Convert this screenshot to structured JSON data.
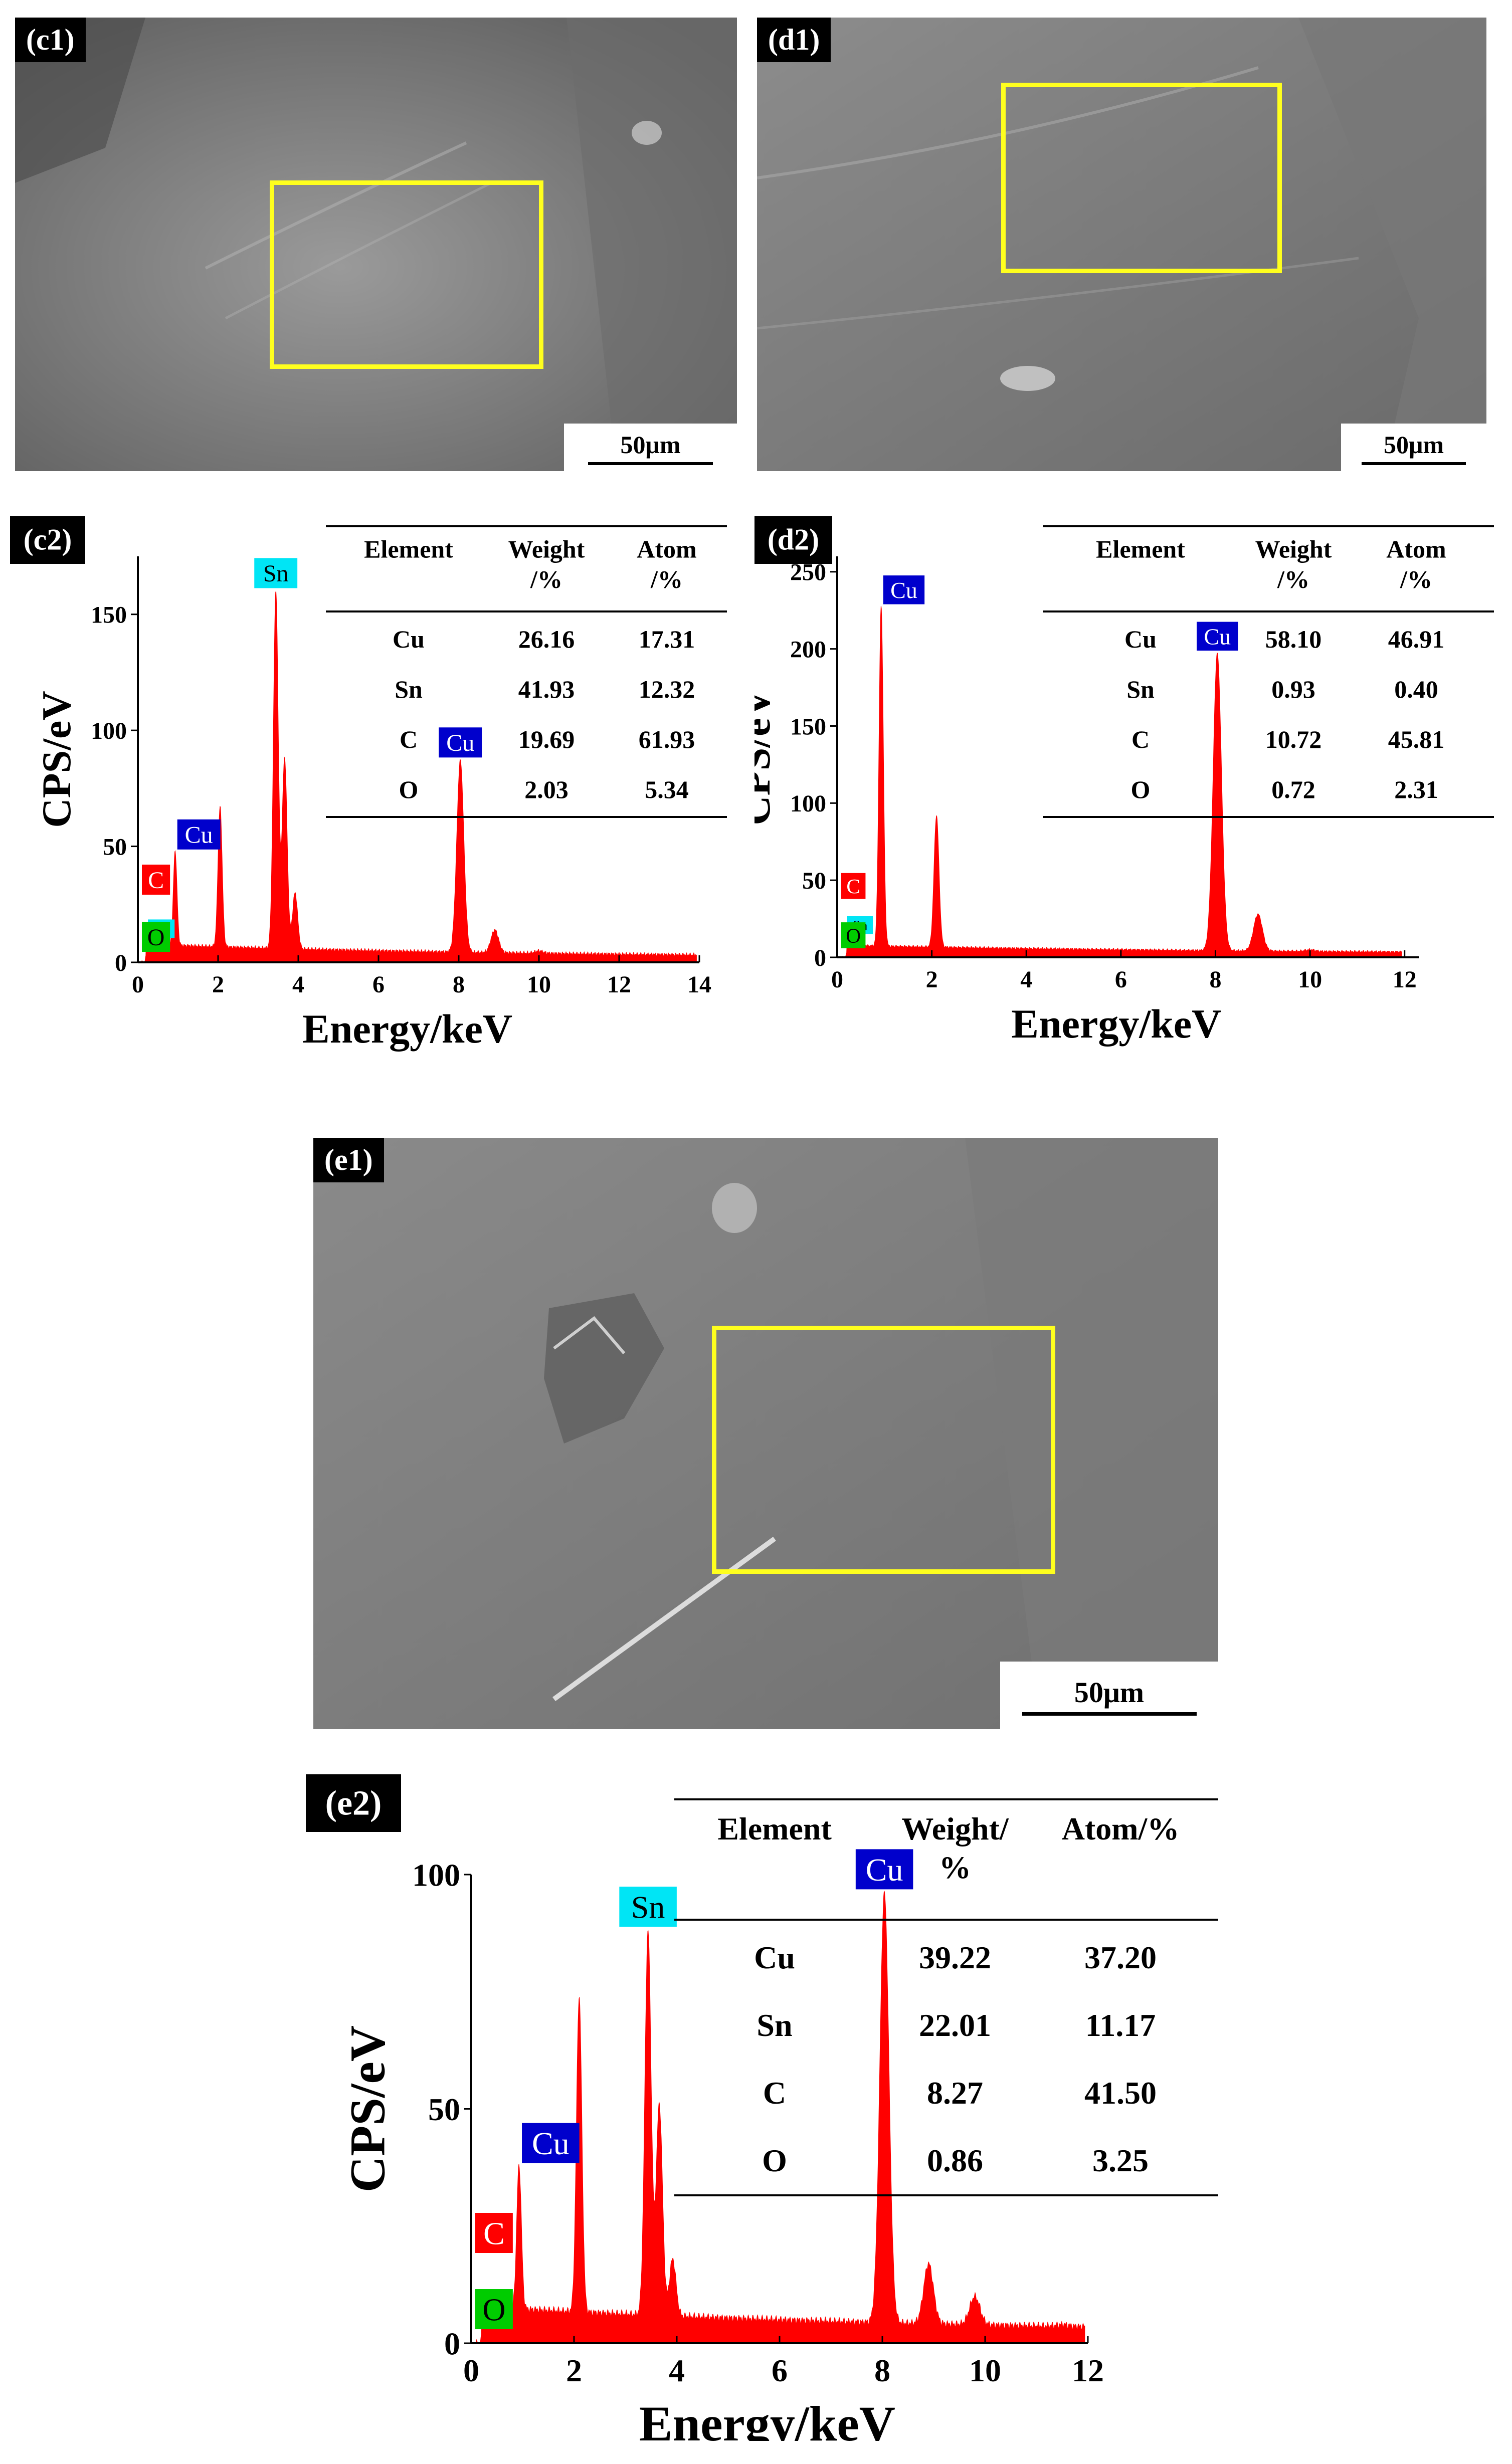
{
  "colors": {
    "spectrum": "#ff0000",
    "roi": "#ffff1e",
    "Cu": "#0000cc",
    "Sn": "#00e5f5",
    "C": "#ff0000",
    "O": "#00cc00"
  },
  "sem_images": [
    {
      "label": "(c1)",
      "scale": "50μm"
    },
    {
      "label": "(d1)",
      "scale": "50μm"
    },
    {
      "label": "(e1)",
      "scale": "50μm"
    }
  ],
  "chart_data": [
    {
      "type": "area",
      "panel_label": "(c2)",
      "title": "",
      "xlabel": "Energy/keV",
      "ylabel": "CPS/eV",
      "xlim": [
        0,
        14
      ],
      "ylim": [
        0,
        175
      ],
      "xticks": [
        0,
        2,
        4,
        6,
        8,
        10,
        12,
        14
      ],
      "yticks": [
        0,
        50,
        100,
        150
      ],
      "peaks": [
        [
          0.28,
          15
        ],
        [
          0.52,
          10
        ],
        [
          0.93,
          48
        ],
        [
          2.05,
          67
        ],
        [
          3.44,
          160
        ],
        [
          3.66,
          88
        ],
        [
          3.92,
          30
        ],
        [
          8.04,
          87
        ],
        [
          8.9,
          14
        ],
        [
          10.0,
          5
        ],
        [
          11.5,
          3
        ]
      ],
      "peak_labels": [
        {
          "element": "Sn",
          "x": 3.44,
          "y": 160
        },
        {
          "element": "Cu",
          "x": 8.04,
          "y": 87
        },
        {
          "element": "Cu",
          "x": 0.93,
          "y": 48
        },
        {
          "element": "C",
          "x": 0.28,
          "y": 15
        },
        {
          "element": "Sn",
          "x": 0.55,
          "y": 12
        },
        {
          "element": "O",
          "x": 0.52,
          "y": 10
        }
      ],
      "table": {
        "headers": [
          "Element",
          "Weight\n/%",
          "Atom\n/%"
        ],
        "rows": [
          [
            "Cu",
            "26.16",
            "17.31"
          ],
          [
            "Sn",
            "41.93",
            "12.32"
          ],
          [
            "C",
            "19.69",
            "61.93"
          ],
          [
            "O",
            "2.03",
            "5.34"
          ]
        ]
      }
    },
    {
      "type": "area",
      "panel_label": "(d2)",
      "title": "",
      "xlabel": "Energy/keV",
      "ylabel": "CPS/eV",
      "xlim": [
        0,
        12.3
      ],
      "ylim": [
        0,
        260
      ],
      "xticks": [
        0,
        2,
        4,
        6,
        8,
        10,
        12
      ],
      "yticks": [
        0,
        50,
        100,
        150,
        200,
        250
      ],
      "peaks": [
        [
          0.28,
          15
        ],
        [
          0.52,
          8
        ],
        [
          0.93,
          228
        ],
        [
          2.1,
          92
        ],
        [
          8.04,
          197
        ],
        [
          8.9,
          28
        ],
        [
          10.0,
          5
        ],
        [
          11.5,
          3
        ]
      ],
      "peak_labels": [
        {
          "element": "Cu",
          "x": 0.93,
          "y": 228
        },
        {
          "element": "Cu",
          "x": 8.04,
          "y": 197
        },
        {
          "element": "C",
          "x": 0.28,
          "y": 15
        },
        {
          "element": "Sn",
          "x": 0.55,
          "y": 10
        },
        {
          "element": "O",
          "x": 0.52,
          "y": 8
        }
      ],
      "table": {
        "headers": [
          "Element",
          "Weight\n/%",
          "Atom\n/%"
        ],
        "rows": [
          [
            "Cu",
            "58.10",
            "46.91"
          ],
          [
            "Sn",
            "0.93",
            "0.40"
          ],
          [
            "C",
            "10.72",
            "45.81"
          ],
          [
            "O",
            "0.72",
            "2.31"
          ]
        ]
      }
    },
    {
      "type": "area",
      "panel_label": "(e2)",
      "title": "",
      "xlabel": "Energy/keV",
      "ylabel": "CPS/eV",
      "xlim": [
        0,
        12
      ],
      "ylim": [
        0,
        100
      ],
      "xticks": [
        0,
        2,
        4,
        6,
        8,
        10,
        12
      ],
      "yticks": [
        0,
        50,
        100
      ],
      "peaks": [
        [
          0.28,
          8
        ],
        [
          0.52,
          6
        ],
        [
          0.93,
          38
        ],
        [
          2.1,
          74
        ],
        [
          3.44,
          88
        ],
        [
          3.66,
          51
        ],
        [
          3.92,
          18
        ],
        [
          8.04,
          96
        ],
        [
          8.9,
          17
        ],
        [
          9.8,
          10
        ],
        [
          11.5,
          4
        ]
      ],
      "peak_labels": [
        {
          "element": "Sn",
          "x": 3.44,
          "y": 88
        },
        {
          "element": "Cu",
          "x": 8.04,
          "y": 96
        },
        {
          "element": "Cu",
          "x": 0.93,
          "y": 38
        },
        {
          "element": "C",
          "x": 0.28,
          "y": 8
        },
        {
          "element": "O",
          "x": 0.52,
          "y": 6
        }
      ],
      "table": {
        "headers": [
          "Element",
          "Weight/\n%",
          "Atom/%"
        ],
        "rows": [
          [
            "Cu",
            "39.22",
            "37.20"
          ],
          [
            "Sn",
            "22.01",
            "11.17"
          ],
          [
            "C",
            "8.27",
            "41.50"
          ],
          [
            "O",
            "0.86",
            "3.25"
          ]
        ]
      }
    }
  ]
}
